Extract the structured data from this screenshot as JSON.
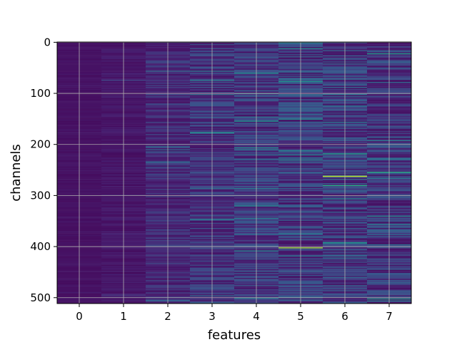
{
  "chart_data": {
    "type": "heatmap",
    "title": "",
    "xlabel": "features",
    "ylabel": "channels",
    "x_ticks": [
      0,
      1,
      2,
      3,
      4,
      5,
      6,
      7
    ],
    "y_ticks": [
      0,
      100,
      200,
      300,
      400,
      500
    ],
    "xlim": [
      -0.5,
      7.5
    ],
    "ylim": [
      511.5,
      -0.5
    ],
    "n_columns": 8,
    "n_rows": 512,
    "grid": true,
    "colormap": "viridis",
    "columns": [
      {
        "feature": 0,
        "mean_intensity": 0.06,
        "variability": 0.02
      },
      {
        "feature": 1,
        "mean_intensity": 0.08,
        "variability": 0.04
      },
      {
        "feature": 2,
        "mean_intensity": 0.14,
        "variability": 0.08
      },
      {
        "feature": 3,
        "mean_intensity": 0.16,
        "variability": 0.1
      },
      {
        "feature": 4,
        "mean_intensity": 0.17,
        "variability": 0.11
      },
      {
        "feature": 5,
        "mean_intensity": 0.18,
        "variability": 0.13
      },
      {
        "feature": 6,
        "mean_intensity": 0.18,
        "variability": 0.13
      },
      {
        "feature": 7,
        "mean_intensity": 0.17,
        "variability": 0.12
      }
    ],
    "hot_cells": [
      {
        "feature": 6,
        "channel": 262,
        "value": 0.92
      },
      {
        "feature": 5,
        "channel": 402,
        "value": 0.85
      },
      {
        "feature": 7,
        "channel": 255,
        "value": 0.6
      },
      {
        "feature": 6,
        "channel": 218,
        "value": 0.55
      }
    ]
  }
}
